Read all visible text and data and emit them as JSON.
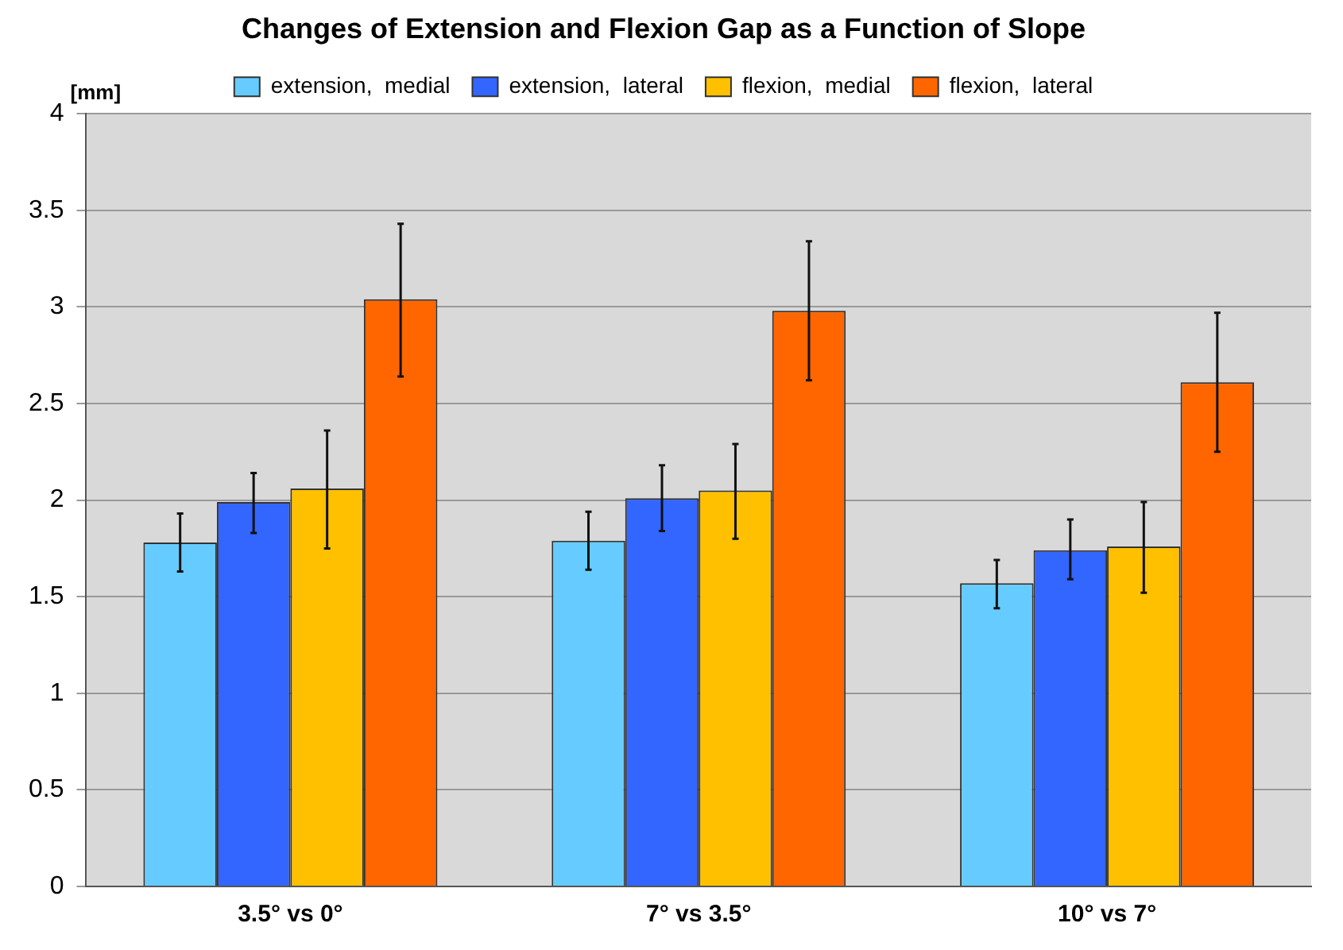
{
  "chart_data": {
    "type": "bar",
    "title": "Changes of Extension and Flexion Gap as a Function of Slope",
    "ylabel": "[mm]",
    "categories": [
      "3.5° vs 0°",
      "7° vs 3.5°",
      "10° vs 7°"
    ],
    "series": [
      {
        "name": "extension,  medial",
        "color": "#66ccff",
        "values": [
          1.78,
          1.79,
          1.57
        ],
        "errors": [
          [
            1.63,
            1.93
          ],
          [
            1.64,
            1.94
          ],
          [
            1.44,
            1.69
          ]
        ]
      },
      {
        "name": "extension,  lateral",
        "color": "#3366ff",
        "values": [
          1.99,
          2.01,
          1.74
        ],
        "errors": [
          [
            1.83,
            2.14
          ],
          [
            1.84,
            2.18
          ],
          [
            1.59,
            1.9
          ]
        ]
      },
      {
        "name": "flexion,  medial",
        "color": "#ffc000",
        "values": [
          2.06,
          2.05,
          1.76
        ],
        "errors": [
          [
            1.75,
            2.36
          ],
          [
            1.8,
            2.29
          ],
          [
            1.52,
            1.99
          ]
        ]
      },
      {
        "name": "flexion,  lateral",
        "color": "#ff6600",
        "values": [
          3.04,
          2.98,
          2.61
        ],
        "errors": [
          [
            2.64,
            3.43
          ],
          [
            2.62,
            3.34
          ],
          [
            2.25,
            2.97
          ]
        ]
      }
    ],
    "ylim": [
      0,
      4
    ],
    "yticks": [
      0,
      0.5,
      1,
      1.5,
      2,
      2.5,
      3,
      3.5,
      4
    ],
    "grid": "y",
    "legend": "top"
  }
}
